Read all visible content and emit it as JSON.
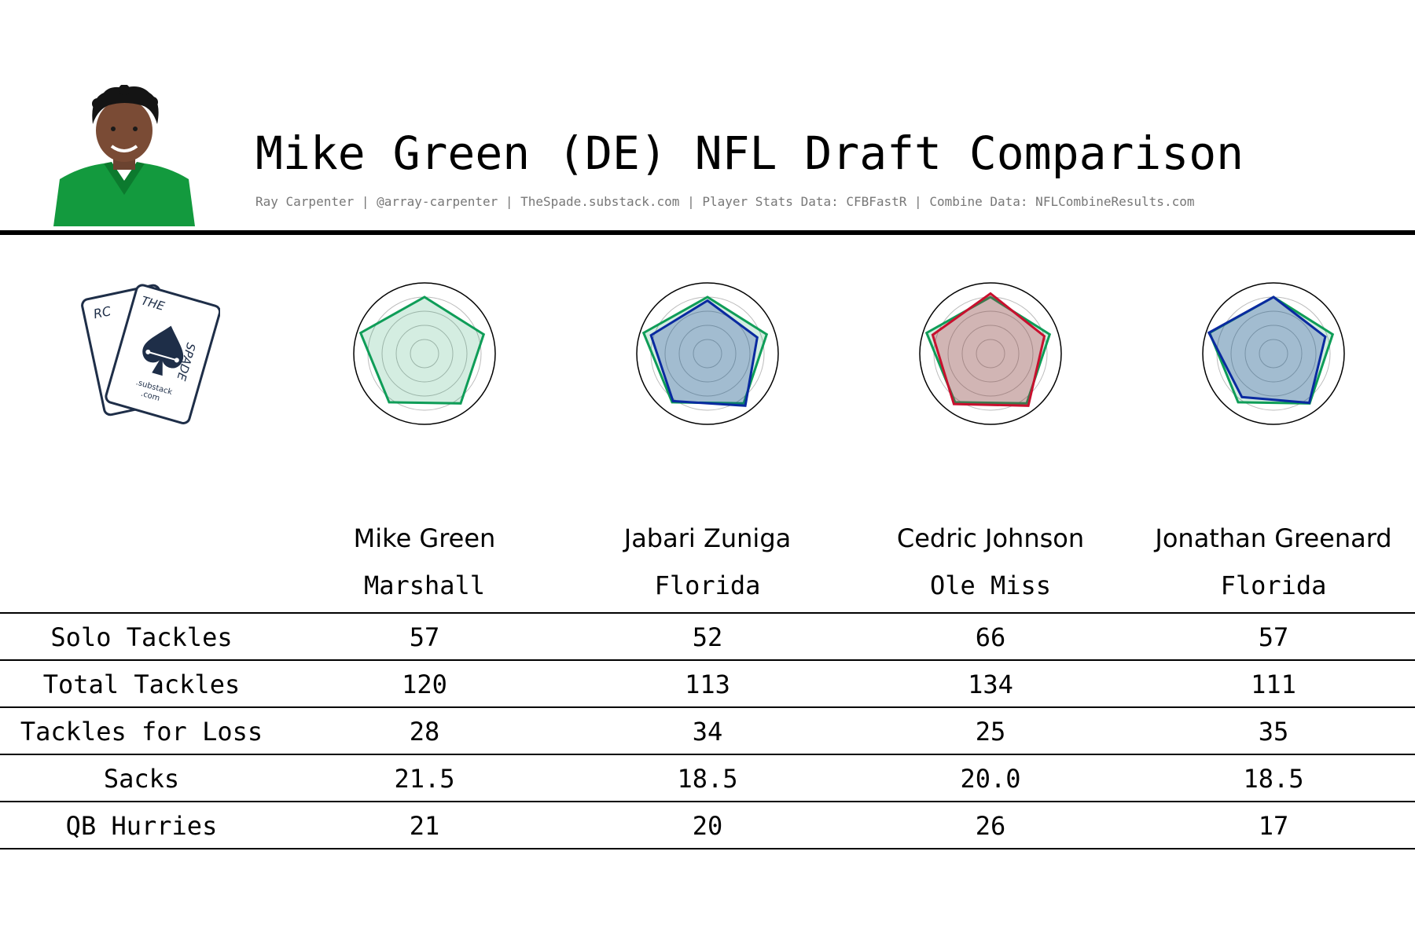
{
  "header": {
    "title": "Mike Green (DE) NFL Draft Comparison",
    "credits": "Ray Carpenter | @array-carpenter | TheSpade.substack.com | Player Stats Data: CFBFastR | Combine Data: NFLCombineResults.com"
  },
  "logo": {
    "text_left": "RC",
    "text_the": "THE",
    "text_spade": "SPADE",
    "text_substack": ".substack",
    "text_com": ".com"
  },
  "colors": {
    "mike_green": "#0f9d58",
    "zuniga": "#0a2aa0",
    "johnson": "#c8102e",
    "greenard": "#0a2aa0",
    "rule": "#000000",
    "credits": "#777777"
  },
  "chart_data": {
    "type": "table",
    "players": [
      {
        "name": "Mike Green",
        "school": "Marshall"
      },
      {
        "name": "Jabari Zuniga",
        "school": "Florida"
      },
      {
        "name": "Cedric Johnson",
        "school": "Ole Miss"
      },
      {
        "name": "Jonathan Greenard",
        "school": "Florida"
      }
    ],
    "stats": [
      {
        "label": "Solo Tackles",
        "values": [
          "57",
          "52",
          "66",
          "57"
        ]
      },
      {
        "label": "Total Tackles",
        "values": [
          "120",
          "113",
          "134",
          "111"
        ]
      },
      {
        "label": "Tackles for Loss",
        "values": [
          "28",
          "34",
          "25",
          "35"
        ]
      },
      {
        "label": "Sacks",
        "values": [
          "21.5",
          "18.5",
          "20.0",
          "18.5"
        ]
      },
      {
        "label": "QB Hurries",
        "values": [
          "21",
          "20",
          "26",
          "17"
        ]
      }
    ],
    "radars": [
      {
        "player": "Mike Green",
        "compare": null,
        "comp_color": null,
        "green": [
          0.8,
          0.88,
          0.87,
          0.85,
          0.95
        ],
        "comp": null
      },
      {
        "player": "Jabari Zuniga",
        "compare": "Mike Green",
        "comp_color": "#0a2aa0",
        "green": [
          0.8,
          0.88,
          0.87,
          0.85,
          0.95
        ],
        "comp": [
          0.75,
          0.74,
          0.91,
          0.83,
          0.84
        ]
      },
      {
        "player": "Cedric Johnson",
        "compare": "Mike Green",
        "comp_color": "#c8102e",
        "green": [
          0.8,
          0.88,
          0.87,
          0.85,
          0.95
        ],
        "comp": [
          0.85,
          0.8,
          0.91,
          0.88,
          0.86
        ]
      },
      {
        "player": "Jonathan Greenard",
        "compare": "Mike Green",
        "comp_color": "#0a2aa0",
        "green": [
          0.8,
          0.88,
          0.87,
          0.85,
          0.95
        ],
        "comp": [
          0.8,
          0.77,
          0.86,
          0.76,
          0.96
        ]
      }
    ]
  }
}
